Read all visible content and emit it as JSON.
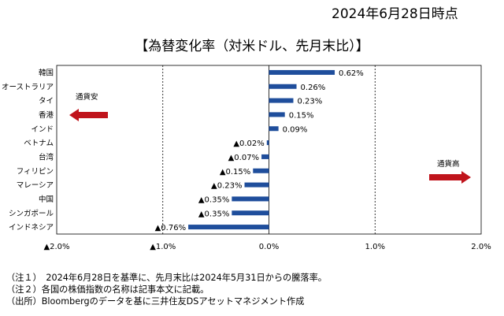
{
  "header": {
    "date": "2024年6月28日時点",
    "title": "【為替変化率（対米ドル、先月末比）】"
  },
  "chart_data": {
    "type": "bar",
    "orientation": "horizontal",
    "title": "【為替変化率（対米ドル、先月末比）】",
    "unit": "%",
    "categories": [
      "韓国",
      "オーストラリア",
      "タイ",
      "香港",
      "インド",
      "ベトナム",
      "台湾",
      "フィリピン",
      "マレーシア",
      "中国",
      "シンガポール",
      "インドネシア"
    ],
    "values": [
      0.62,
      0.26,
      0.23,
      0.15,
      0.09,
      -0.02,
      -0.07,
      -0.15,
      -0.23,
      -0.35,
      -0.35,
      -0.76
    ],
    "value_labels": [
      "0.62%",
      "0.26%",
      "0.23%",
      "0.15%",
      "0.09%",
      "▲0.02%",
      "▲0.07%",
      "▲0.15%",
      "▲0.23%",
      "▲0.35%",
      "▲0.35%",
      "▲0.76%"
    ],
    "xlim": [
      -2.0,
      2.0
    ],
    "xticks": [
      -2.0,
      -1.0,
      0.0,
      1.0,
      2.0
    ],
    "xtick_labels": [
      "▲2.0%",
      "▲1.0%",
      "0.0%",
      "1.0%",
      "2.0%"
    ],
    "gridlines": "dashed at ▲1.0% and 1.0%",
    "bar_color": "#1f4e9c",
    "annotations": {
      "weak": "通貨安",
      "strong": "通貨高"
    },
    "arrow_color": "#c0141c"
  },
  "notes": [
    "（注１）　2024年6月28日を基準に、先月末比は2024年5月31日からの騰落率。",
    "（注２）各国の株価指数の名称は記事本文に記載。",
    "（出所）Bloombergのデータを基に三井住友DSアセットマネジメント作成"
  ]
}
